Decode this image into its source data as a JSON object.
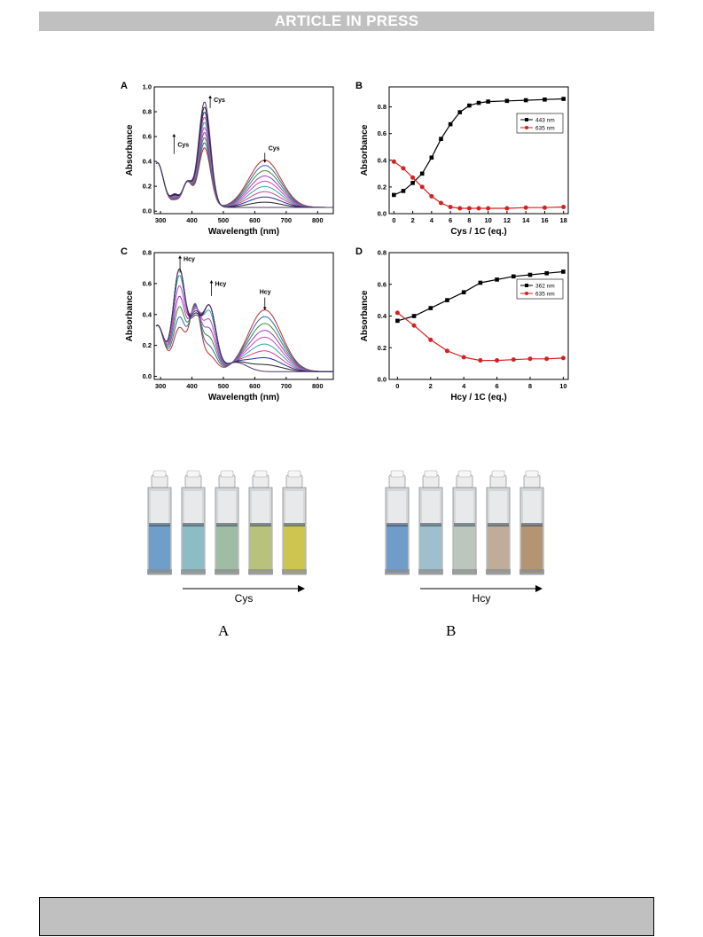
{
  "header": {
    "banner_text": "ARTICLE IN PRESS"
  },
  "chart_data": [
    {
      "type": "line",
      "panel_label": "A",
      "xlabel": "Wavelength (nm)",
      "ylabel": "Absorbance",
      "xlim": [
        280,
        850
      ],
      "ylim": [
        -0.02,
        1.0
      ],
      "xticks": [
        300,
        400,
        500,
        600,
        700,
        800
      ],
      "yticks": [
        0.0,
        0.2,
        0.4,
        0.6,
        0.8,
        1.0
      ],
      "annotations": [
        "Cys",
        "Cys",
        "Cys"
      ],
      "series_count": 10
    },
    {
      "type": "line",
      "panel_label": "B",
      "xlabel": "Cys / 1C (eq.)",
      "ylabel": "Absorbance",
      "xlim": [
        -0.5,
        18.5
      ],
      "ylim": [
        0.0,
        0.95
      ],
      "xticks": [
        0,
        2,
        4,
        6,
        8,
        10,
        12,
        14,
        16,
        18
      ],
      "yticks": [
        0.0,
        0.2,
        0.4,
        0.6,
        0.8
      ],
      "legend_position": "top-right",
      "series": [
        {
          "name": "443 nm",
          "color": "#000000",
          "marker": "square",
          "x": [
            0,
            1,
            2,
            3,
            4,
            5,
            6,
            7,
            8,
            9,
            10,
            12,
            14,
            16,
            18
          ],
          "values": [
            0.14,
            0.17,
            0.23,
            0.3,
            0.42,
            0.56,
            0.67,
            0.76,
            0.81,
            0.83,
            0.84,
            0.845,
            0.85,
            0.855,
            0.86
          ]
        },
        {
          "name": "635 nm",
          "color": "#d42020",
          "marker": "circle",
          "x": [
            0,
            1,
            2,
            3,
            4,
            5,
            6,
            7,
            8,
            9,
            10,
            12,
            14,
            16,
            18
          ],
          "values": [
            0.39,
            0.34,
            0.27,
            0.2,
            0.13,
            0.08,
            0.05,
            0.04,
            0.04,
            0.04,
            0.04,
            0.04,
            0.045,
            0.045,
            0.05
          ]
        }
      ]
    },
    {
      "type": "line",
      "panel_label": "C",
      "xlabel": "Wavelength (nm)",
      "ylabel": "Absorbance",
      "xlim": [
        280,
        850
      ],
      "ylim": [
        -0.02,
        0.8
      ],
      "xticks": [
        300,
        400,
        500,
        600,
        700,
        800
      ],
      "yticks": [
        0.0,
        0.2,
        0.4,
        0.6,
        0.8
      ],
      "annotations": [
        "Hcy",
        "Hcy",
        "Hcy"
      ],
      "series_count": 10
    },
    {
      "type": "line",
      "panel_label": "D",
      "xlabel": "Hcy / 1C (eq.)",
      "ylabel": "Absorbance",
      "xlim": [
        -0.5,
        10.3
      ],
      "ylim": [
        0.0,
        0.8
      ],
      "xticks": [
        0,
        2,
        4,
        6,
        8,
        10
      ],
      "yticks": [
        0.0,
        0.2,
        0.4,
        0.6,
        0.8
      ],
      "legend_position": "top-right",
      "series": [
        {
          "name": "362 nm",
          "color": "#000000",
          "marker": "square",
          "x": [
            0,
            1,
            2,
            3,
            4,
            5,
            6,
            7,
            8,
            9,
            10
          ],
          "values": [
            0.37,
            0.4,
            0.45,
            0.5,
            0.55,
            0.61,
            0.63,
            0.65,
            0.66,
            0.67,
            0.68
          ]
        },
        {
          "name": "635 nm",
          "color": "#d42020",
          "marker": "circle",
          "x": [
            0,
            1,
            2,
            3,
            4,
            5,
            6,
            7,
            8,
            9,
            10
          ],
          "values": [
            0.42,
            0.34,
            0.25,
            0.18,
            0.14,
            0.12,
            0.12,
            0.125,
            0.13,
            0.13,
            0.135
          ]
        }
      ]
    }
  ],
  "photos": [
    {
      "arrow_label": "Cys",
      "caption": "A",
      "vial_colors": [
        "#6f9fc8",
        "#8cbcc4",
        "#9fbca4",
        "#b9c27a",
        "#ccc650"
      ]
    },
    {
      "arrow_label": "Hcy",
      "caption": "B",
      "vial_colors": [
        "#6f9cc8",
        "#9fbfcc",
        "#bcc6bc",
        "#bfad99",
        "#b49572"
      ]
    }
  ]
}
